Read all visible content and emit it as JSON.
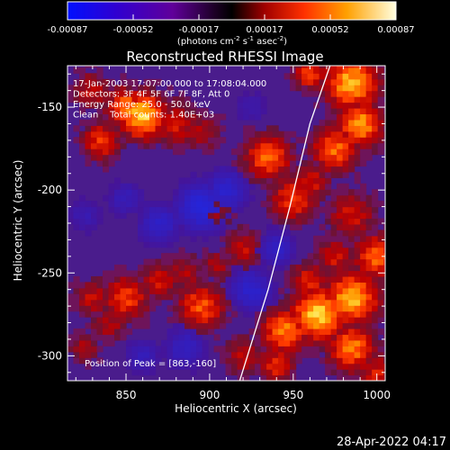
{
  "chart_data": {
    "type": "heatmap",
    "title": "Reconstructed RHESSI Image",
    "xlabel": "Heliocentric X (arcsec)",
    "ylabel": "Heliocentric Y (arcsec)",
    "xlim": [
      815,
      1005
    ],
    "ylim": [
      -315,
      -125
    ],
    "xticks": [
      850,
      900,
      950,
      1000
    ],
    "yticks": [
      -150,
      -200,
      -250,
      -300
    ],
    "colorbar": {
      "ticks": [
        "-0.00087",
        "-0.00052",
        "-0.00017",
        "0.00017",
        "0.00052",
        "0.00087"
      ],
      "unit_text": "(photons cm",
      "unit_sup1": "-2",
      "unit_mid": " s",
      "unit_sup2": "-1",
      "unit_end": " asec",
      "unit_sup3": "-2",
      "unit_close": ")"
    },
    "annotations": [
      "17-Jan-2003 17:07:00.000 to 17:08:04.000",
      "Detectors: 3F 4F 5F 6F 7F 8F, Att 0",
      "Energy Range: 25.0 - 50.0 keV",
      "Clean    Total counts: 1.40E+03"
    ],
    "peak_label": "Position of Peak = [863,-160]",
    "peak": [
      863,
      -160
    ],
    "limb_curve": [
      [
        918,
        -315
      ],
      [
        935,
        -260
      ],
      [
        948,
        -210
      ],
      [
        960,
        -160
      ],
      [
        972,
        -125
      ]
    ],
    "hot_regions": [
      {
        "x": 860,
        "y": -155,
        "level": 0.95,
        "r": 12
      },
      {
        "x": 850,
        "y": -150,
        "level": 0.8,
        "r": 10
      },
      {
        "x": 835,
        "y": -170,
        "level": 0.65,
        "r": 10
      },
      {
        "x": 880,
        "y": -160,
        "level": 0.55,
        "r": 12
      },
      {
        "x": 895,
        "y": -165,
        "level": 0.45,
        "r": 10
      },
      {
        "x": 830,
        "y": -140,
        "level": 0.5,
        "r": 10
      },
      {
        "x": 960,
        "y": -130,
        "level": 0.7,
        "r": 8
      },
      {
        "x": 985,
        "y": -135,
        "level": 0.9,
        "r": 14
      },
      {
        "x": 990,
        "y": -160,
        "level": 0.85,
        "r": 12
      },
      {
        "x": 975,
        "y": -175,
        "level": 0.75,
        "r": 12
      },
      {
        "x": 935,
        "y": -180,
        "level": 0.75,
        "r": 12
      },
      {
        "x": 950,
        "y": -205,
        "level": 0.65,
        "r": 12
      },
      {
        "x": 960,
        "y": -195,
        "level": 0.55,
        "r": 10
      },
      {
        "x": 985,
        "y": -215,
        "level": 0.55,
        "r": 12
      },
      {
        "x": 1000,
        "y": -240,
        "level": 0.75,
        "r": 12
      },
      {
        "x": 975,
        "y": -240,
        "level": 0.55,
        "r": 10
      },
      {
        "x": 960,
        "y": -255,
        "level": 0.6,
        "r": 10
      },
      {
        "x": 965,
        "y": -275,
        "level": 0.95,
        "r": 14
      },
      {
        "x": 985,
        "y": -265,
        "level": 0.9,
        "r": 14
      },
      {
        "x": 945,
        "y": -285,
        "level": 0.8,
        "r": 12
      },
      {
        "x": 985,
        "y": -295,
        "level": 0.8,
        "r": 12
      },
      {
        "x": 940,
        "y": -305,
        "level": 0.6,
        "r": 10
      },
      {
        "x": 1000,
        "y": -310,
        "level": 0.55,
        "r": 10
      },
      {
        "x": 920,
        "y": -300,
        "level": 0.5,
        "r": 10
      },
      {
        "x": 850,
        "y": -265,
        "level": 0.65,
        "r": 12
      },
      {
        "x": 870,
        "y": -255,
        "level": 0.55,
        "r": 10
      },
      {
        "x": 895,
        "y": -270,
        "level": 0.7,
        "r": 12
      },
      {
        "x": 885,
        "y": -250,
        "level": 0.45,
        "r": 10
      },
      {
        "x": 830,
        "y": -265,
        "level": 0.5,
        "r": 10
      },
      {
        "x": 840,
        "y": -280,
        "level": 0.45,
        "r": 10
      },
      {
        "x": 825,
        "y": -295,
        "level": 0.45,
        "r": 8
      },
      {
        "x": 920,
        "y": -235,
        "level": 0.5,
        "r": 10
      },
      {
        "x": 905,
        "y": -245,
        "level": 0.45,
        "r": 8
      },
      {
        "x": 905,
        "y": -215,
        "level": 0.35,
        "r": 8
      }
    ],
    "cold_regions": [
      {
        "x": 895,
        "y": -210,
        "level": 0.7,
        "r": 14
      },
      {
        "x": 910,
        "y": -200,
        "level": 0.6,
        "r": 12
      },
      {
        "x": 870,
        "y": -220,
        "level": 0.55,
        "r": 12
      },
      {
        "x": 925,
        "y": -260,
        "level": 0.6,
        "r": 12
      },
      {
        "x": 885,
        "y": -295,
        "level": 0.5,
        "r": 12
      },
      {
        "x": 940,
        "y": -235,
        "level": 0.55,
        "r": 10
      },
      {
        "x": 825,
        "y": -215,
        "level": 0.4,
        "r": 10
      },
      {
        "x": 850,
        "y": -205,
        "level": 0.45,
        "r": 10
      },
      {
        "x": 925,
        "y": -150,
        "level": 0.35,
        "r": 10
      },
      {
        "x": 860,
        "y": -300,
        "level": 0.45,
        "r": 10
      },
      {
        "x": 940,
        "y": -275,
        "level": 0.4,
        "r": 8
      }
    ]
  },
  "footer": {
    "timestamp": "28-Apr-2022 04:17"
  }
}
